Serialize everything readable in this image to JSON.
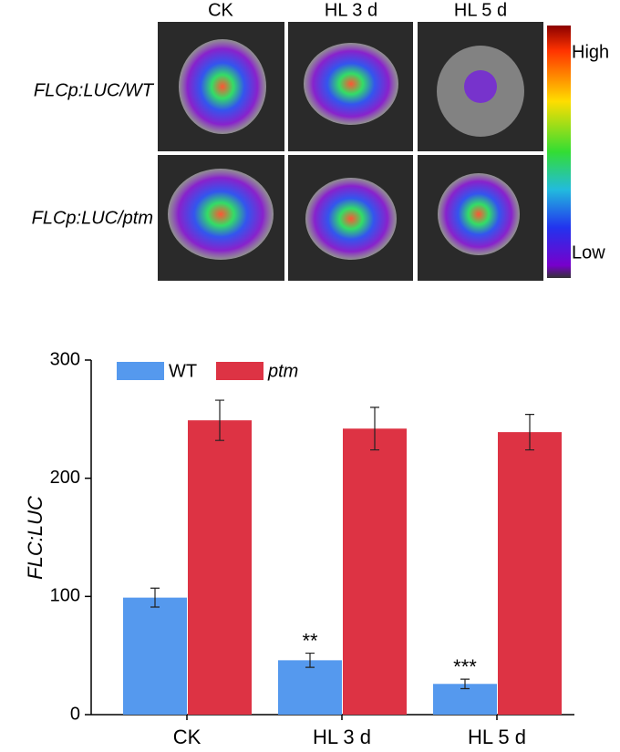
{
  "image_panel": {
    "columns": [
      "CK",
      "HL 3 d",
      "HL 5 d"
    ],
    "rows": [
      "FLCp:LUC/WT",
      "FLCp:LUC/ptm"
    ],
    "scale_high": "High",
    "scale_low": "Low"
  },
  "chart_data": {
    "type": "bar",
    "ylabel": "FLC:LUC",
    "categories": [
      "CK",
      "HL 3 d",
      "HL 5 d"
    ],
    "series": [
      {
        "name": "WT",
        "color": "#5599ee",
        "values": [
          99,
          46,
          26
        ],
        "errors": [
          8,
          6,
          4
        ],
        "annotations": [
          null,
          "**",
          "***"
        ]
      },
      {
        "name": "ptm",
        "color": "#dd3344",
        "values": [
          249,
          242,
          239
        ],
        "errors": [
          17,
          18,
          15
        ]
      }
    ],
    "ylim": [
      0,
      300
    ],
    "yticks": [
      0,
      100,
      200,
      300
    ],
    "legend": "top-left"
  }
}
